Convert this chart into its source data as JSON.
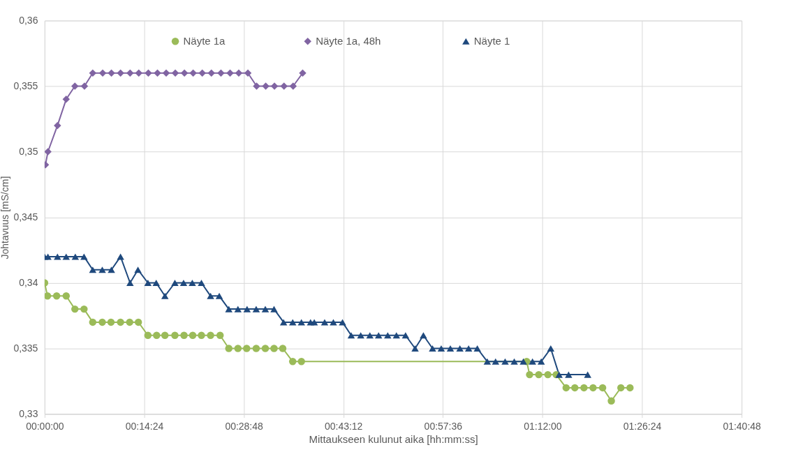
{
  "chart_data": {
    "type": "line",
    "xlabel": "Mittaukseen kulunut aika [hh:mm:ss]",
    "ylabel": "Johtavuus [mS/cm]",
    "xlim": [
      0,
      1.68
    ],
    "xticks": [
      {
        "value": 0,
        "label": "00:00:00"
      },
      {
        "value": 0.24,
        "label": "00:14:24"
      },
      {
        "value": 0.48,
        "label": "00:28:48"
      },
      {
        "value": 0.72,
        "label": "00:43:12"
      },
      {
        "value": 0.96,
        "label": "00:57:36"
      },
      {
        "value": 1.2,
        "label": "01:12:00"
      },
      {
        "value": 1.44,
        "label": "01:26:24"
      },
      {
        "value": 1.68,
        "label": "01:40:48"
      }
    ],
    "ylim": [
      0.33,
      0.36
    ],
    "yticks": [
      {
        "value": 0.33,
        "label": "0,33"
      },
      {
        "value": 0.335,
        "label": "0,335"
      },
      {
        "value": 0.34,
        "label": "0,34"
      },
      {
        "value": 0.345,
        "label": "0,345"
      },
      {
        "value": 0.35,
        "label": "0,35"
      },
      {
        "value": 0.355,
        "label": "0,355"
      },
      {
        "value": 0.36,
        "label": "0,36"
      }
    ],
    "grid": true,
    "legend": "top",
    "series": [
      {
        "name": "Näyte 1a",
        "color": "#9bbb59",
        "marker": "circle",
        "x": [
          0,
          0.007,
          0.029,
          0.052,
          0.073,
          0.095,
          0.116,
          0.139,
          0.16,
          0.183,
          0.205,
          0.226,
          0.249,
          0.27,
          0.29,
          0.314,
          0.336,
          0.357,
          0.378,
          0.4,
          0.423,
          0.444,
          0.466,
          0.487,
          0.51,
          0.532,
          0.553,
          0.574,
          0.598,
          0.619,
          1.162,
          1.169,
          1.191,
          1.213,
          1.233,
          1.257,
          1.278,
          1.3,
          1.322,
          1.345,
          1.366,
          1.389,
          1.411
        ],
        "values": [
          0.34,
          0.339,
          0.339,
          0.339,
          0.338,
          0.338,
          0.337,
          0.337,
          0.337,
          0.337,
          0.337,
          0.337,
          0.336,
          0.336,
          0.336,
          0.336,
          0.336,
          0.336,
          0.336,
          0.336,
          0.336,
          0.335,
          0.335,
          0.335,
          0.335,
          0.335,
          0.335,
          0.335,
          0.334,
          0.334,
          0.334,
          0.333,
          0.333,
          0.333,
          0.333,
          0.332,
          0.332,
          0.332,
          0.332,
          0.332,
          0.331,
          0.332,
          0.332
        ]
      },
      {
        "name": "Näyte 1a,  48h",
        "color": "#8064a2",
        "marker": "diamond",
        "x": [
          0.002,
          0.008,
          0.031,
          0.052,
          0.073,
          0.096,
          0.116,
          0.14,
          0.161,
          0.183,
          0.206,
          0.227,
          0.25,
          0.272,
          0.293,
          0.315,
          0.337,
          0.358,
          0.38,
          0.402,
          0.425,
          0.447,
          0.468,
          0.49,
          0.511,
          0.533,
          0.554,
          0.577,
          0.599,
          0.622
        ],
        "values": [
          0.349,
          0.35,
          0.352,
          0.354,
          0.355,
          0.355,
          0.356,
          0.356,
          0.356,
          0.356,
          0.356,
          0.356,
          0.356,
          0.356,
          0.356,
          0.356,
          0.356,
          0.356,
          0.356,
          0.356,
          0.356,
          0.356,
          0.356,
          0.356,
          0.355,
          0.355,
          0.355,
          0.355,
          0.355,
          0.356
        ]
      },
      {
        "name": "Näyte 1",
        "color": "#1f497d",
        "marker": "triangle",
        "x": [
          0,
          0.008,
          0.031,
          0.052,
          0.074,
          0.095,
          0.116,
          0.139,
          0.161,
          0.183,
          0.206,
          0.225,
          0.249,
          0.269,
          0.29,
          0.314,
          0.335,
          0.356,
          0.378,
          0.4,
          0.421,
          0.444,
          0.466,
          0.488,
          0.51,
          0.532,
          0.553,
          0.576,
          0.598,
          0.619,
          0.641,
          0.65,
          0.675,
          0.696,
          0.718,
          0.739,
          0.762,
          0.784,
          0.805,
          0.827,
          0.848,
          0.87,
          0.893,
          0.913,
          0.935,
          0.956,
          0.978,
          1.001,
          1.022,
          1.043,
          1.067,
          1.087,
          1.11,
          1.132,
          1.154,
          1.176,
          1.197,
          1.22,
          1.24,
          1.263,
          1.309
        ],
        "values": [
          0.342,
          0.342,
          0.342,
          0.342,
          0.342,
          0.342,
          0.341,
          0.341,
          0.341,
          0.342,
          0.34,
          0.341,
          0.34,
          0.34,
          0.339,
          0.34,
          0.34,
          0.34,
          0.34,
          0.339,
          0.339,
          0.338,
          0.338,
          0.338,
          0.338,
          0.338,
          0.338,
          0.337,
          0.337,
          0.337,
          0.337,
          0.337,
          0.337,
          0.337,
          0.337,
          0.336,
          0.336,
          0.336,
          0.336,
          0.336,
          0.336,
          0.336,
          0.335,
          0.336,
          0.335,
          0.335,
          0.335,
          0.335,
          0.335,
          0.335,
          0.334,
          0.334,
          0.334,
          0.334,
          0.334,
          0.334,
          0.334,
          0.335,
          0.333,
          0.333,
          0.333
        ]
      }
    ]
  }
}
